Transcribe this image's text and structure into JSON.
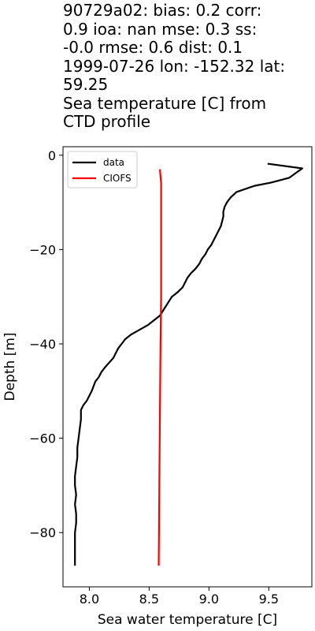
{
  "chart_data": {
    "type": "line",
    "title_lines": [
      "90729a02: bias: 0.2  corr:",
      "0.9  ioa: nan  mse: 0.3  ss:",
      "-0.0  rmse: 0.6  dist: 0.1",
      "1999-07-26 lon: -152.32 lat:",
      "59.25",
      "Sea temperature [C] from",
      "CTD profile"
    ],
    "xlabel": "Sea water temperature [C]",
    "ylabel": "Depth [m]",
    "xlim": [
      7.78,
      9.86
    ],
    "ylim": [
      -91.5,
      1.8
    ],
    "xticks": [
      8.0,
      8.5,
      9.0,
      9.5
    ],
    "xtick_labels": [
      "8.0",
      "8.5",
      "9.0",
      "9.5"
    ],
    "yticks": [
      0,
      -20,
      -40,
      -60,
      -80
    ],
    "ytick_labels": [
      "0",
      "−20",
      "−40",
      "−60",
      "−80"
    ],
    "legend_position": "upper-left",
    "series": [
      {
        "name": "data",
        "color": "#000000",
        "x": [
          9.49,
          9.78,
          9.67,
          9.52,
          9.38,
          9.23,
          9.18,
          9.15,
          9.13,
          9.12,
          9.12,
          9.11,
          9.1,
          9.08,
          9.06,
          9.04,
          9.02,
          8.99,
          8.97,
          8.94,
          8.92,
          8.89,
          8.85,
          8.82,
          8.78,
          8.74,
          8.69,
          8.64,
          8.59,
          8.54,
          8.49,
          8.42,
          8.35,
          8.3,
          8.27,
          8.24,
          8.2,
          8.13,
          8.1,
          8.08,
          8.05,
          8.02,
          8.0,
          7.98,
          7.95,
          7.93,
          7.93,
          7.92,
          7.91,
          7.9,
          7.9,
          7.89,
          7.88,
          7.88,
          7.89,
          7.88,
          7.89,
          7.89,
          7.88,
          7.88,
          7.88
        ],
        "y": [
          -1.8,
          -2.8,
          -4.8,
          -5.8,
          -6.5,
          -7.8,
          -9.0,
          -10.0,
          -11.0,
          -12.0,
          -13.0,
          -14.0,
          -15.0,
          -16.0,
          -17.0,
          -18.0,
          -19.0,
          -20.0,
          -21.0,
          -22.0,
          -23.0,
          -24.0,
          -25.0,
          -26.0,
          -28.0,
          -29.0,
          -30.0,
          -32.0,
          -34.0,
          -35.0,
          -36.0,
          -37.0,
          -38.0,
          -39.0,
          -40.0,
          -41.0,
          -43.0,
          -45.0,
          -46.0,
          -47.0,
          -48.0,
          -50.0,
          -51.0,
          -52.0,
          -53.0,
          -54.0,
          -56.0,
          -58.0,
          -60.0,
          -62.0,
          -64.0,
          -66.0,
          -68.0,
          -70.0,
          -72.0,
          -74.0,
          -76.0,
          -78.0,
          -80.0,
          -82.0,
          -87.0
        ]
      },
      {
        "name": "CIOFS",
        "color": "#ff0000",
        "x": [
          8.59,
          8.6,
          8.6,
          8.6,
          8.6,
          8.595,
          8.59,
          8.585,
          8.58
        ],
        "y": [
          -3.0,
          -6.0,
          -10.0,
          -20.0,
          -30.0,
          -40.0,
          -55.0,
          -70.0,
          -87.0
        ]
      }
    ]
  }
}
